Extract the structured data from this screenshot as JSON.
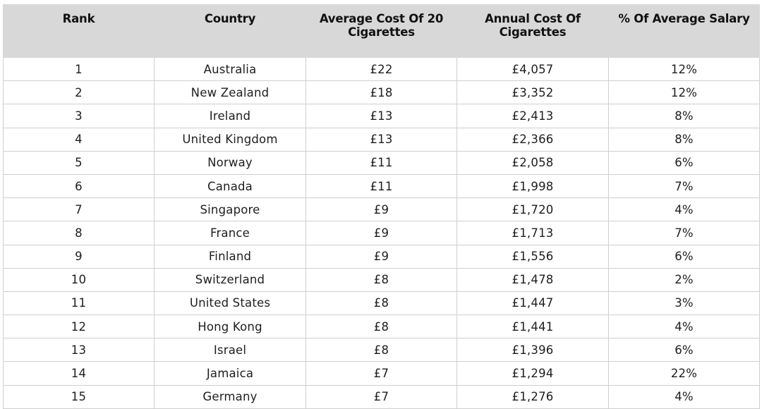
{
  "table": {
    "columns": [
      "Rank",
      "Country",
      "Average Cost Of 20 Cigarettes",
      "Annual Cost Of Cigarettes",
      "% Of Average Salary"
    ],
    "rows": [
      [
        "1",
        "Australia",
        "£22",
        "£4,057",
        "12%"
      ],
      [
        "2",
        "New Zealand",
        "£18",
        "£3,352",
        "12%"
      ],
      [
        "3",
        "Ireland",
        "£13",
        "£2,413",
        "8%"
      ],
      [
        "4",
        "United Kingdom",
        "£13",
        "£2,366",
        "8%"
      ],
      [
        "5",
        "Norway",
        "£11",
        "£2,058",
        "6%"
      ],
      [
        "6",
        "Canada",
        "£11",
        "£1,998",
        "7%"
      ],
      [
        "7",
        "Singapore",
        "£9",
        "£1,720",
        "4%"
      ],
      [
        "8",
        "France",
        "£9",
        "£1,713",
        "7%"
      ],
      [
        "9",
        "Finland",
        "£9",
        "£1,556",
        "6%"
      ],
      [
        "10",
        "Switzerland",
        "£8",
        "£1,478",
        "2%"
      ],
      [
        "11",
        "United States",
        "£8",
        "£1,447",
        "3%"
      ],
      [
        "12",
        "Hong Kong",
        "£8",
        "£1,441",
        "4%"
      ],
      [
        "13",
        "Israel",
        "£8",
        "£1,396",
        "6%"
      ],
      [
        "14",
        "Jamaica",
        "£7",
        "£1,294",
        "22%"
      ],
      [
        "15",
        "Germany",
        "£7",
        "£1,276",
        "4%"
      ]
    ]
  },
  "colors": {
    "header_bg": "#d8d8d8",
    "border": "#cfcfcf",
    "text": "#1e1e1e"
  }
}
